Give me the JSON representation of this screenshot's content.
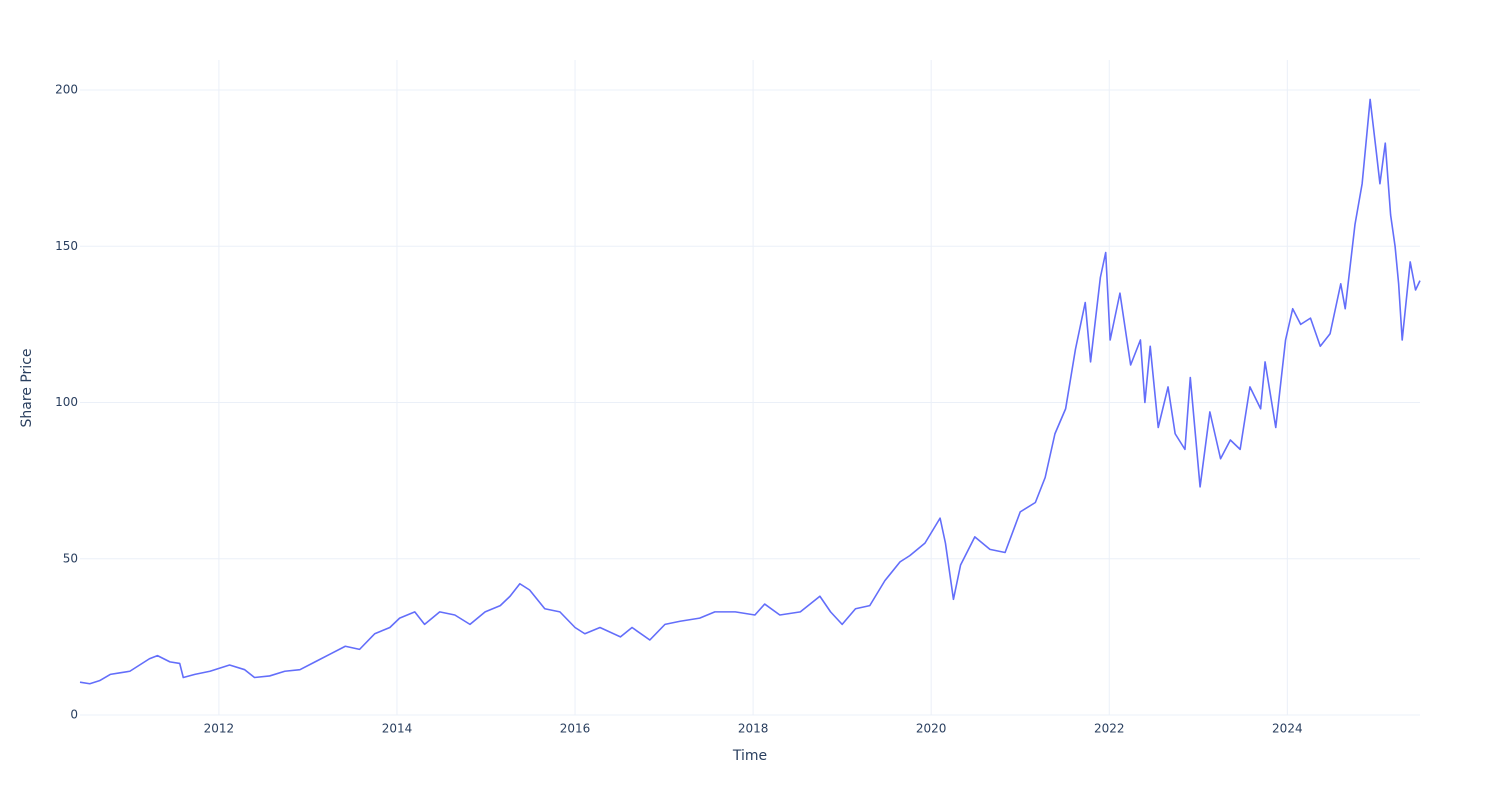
{
  "chart_data": {
    "type": "line",
    "x_label": "Time",
    "y_label": "Share Price",
    "xlim": [
      2010.44,
      2025.49
    ],
    "xticks": [
      2012,
      2014,
      2016,
      2018,
      2020,
      2022,
      2024
    ],
    "ylim": [
      0,
      209.6
    ],
    "yticks": [
      0,
      50,
      100,
      150,
      200
    ],
    "grid": true,
    "x": [
      2010.44,
      2010.55,
      2010.66,
      2010.78,
      2010.89,
      2011.0,
      2011.11,
      2011.22,
      2011.31,
      2011.45,
      2011.56,
      2011.6,
      2011.73,
      2011.9,
      2012.01,
      2012.12,
      2012.29,
      2012.4,
      2012.57,
      2012.74,
      2012.91,
      2013.08,
      2013.25,
      2013.42,
      2013.58,
      2013.75,
      2013.92,
      2014.03,
      2014.2,
      2014.31,
      2014.48,
      2014.65,
      2014.82,
      2014.99,
      2015.16,
      2015.27,
      2015.38,
      2015.49,
      2015.66,
      2015.83,
      2016.0,
      2016.11,
      2016.28,
      2016.51,
      2016.64,
      2016.84,
      2017.01,
      2017.18,
      2017.4,
      2017.57,
      2017.8,
      2018.02,
      2018.13,
      2018.3,
      2018.53,
      2018.75,
      2018.87,
      2019.0,
      2019.15,
      2019.31,
      2019.48,
      2019.65,
      2019.76,
      2019.93,
      2020.1,
      2020.16,
      2020.25,
      2020.33,
      2020.49,
      2020.66,
      2020.83,
      2021.0,
      2021.17,
      2021.28,
      2021.39,
      2021.51,
      2021.62,
      2021.73,
      2021.79,
      2021.9,
      2021.96,
      2022.01,
      2022.12,
      2022.24,
      2022.35,
      2022.4,
      2022.46,
      2022.55,
      2022.66,
      2022.74,
      2022.85,
      2022.91,
      2023.02,
      2023.13,
      2023.25,
      2023.36,
      2023.47,
      2023.58,
      2023.7,
      2023.75,
      2023.87,
      2023.98,
      2024.06,
      2024.15,
      2024.26,
      2024.37,
      2024.48,
      2024.6,
      2024.65,
      2024.76,
      2024.84,
      2024.93,
      2025.0,
      2025.04,
      2025.1,
      2025.16,
      2025.21,
      2025.25,
      2025.29,
      2025.38,
      2025.44,
      2025.49
    ],
    "series": [
      {
        "name": "Share Price",
        "color": "#636efa",
        "values": [
          10.5,
          10,
          11,
          13,
          13.5,
          14,
          16,
          18,
          19,
          17,
          16.5,
          12,
          13,
          14,
          15,
          16,
          14.5,
          12,
          12.5,
          14,
          14.5,
          17,
          19.5,
          22,
          21,
          26,
          28,
          31,
          33,
          29,
          33,
          32,
          29,
          33,
          35,
          38,
          42,
          40,
          34,
          33,
          28,
          26,
          28,
          25,
          28,
          24,
          29,
          30,
          31,
          33,
          33,
          32,
          35.5,
          32,
          33,
          38,
          33,
          29,
          34,
          35,
          43,
          49,
          51,
          55,
          63,
          55,
          37,
          48,
          57,
          53,
          52,
          65,
          68,
          76,
          90,
          98,
          117,
          132,
          113,
          140,
          148,
          120,
          135,
          112,
          120,
          100,
          118,
          92,
          105,
          90,
          85,
          108,
          73,
          97,
          82,
          88,
          85,
          105,
          98,
          113,
          92,
          120,
          130,
          125,
          127,
          118,
          122,
          138,
          130,
          157,
          170,
          197,
          180,
          170,
          183,
          160,
          150,
          138,
          120,
          145,
          136,
          139
        ]
      }
    ]
  }
}
